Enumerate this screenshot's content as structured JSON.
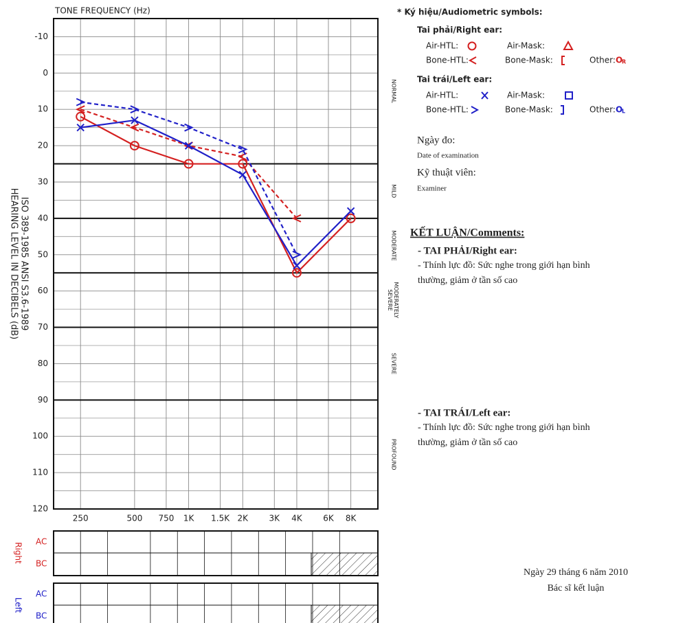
{
  "chart_data": {
    "type": "line",
    "xlabel": "TONE FREQUENCY (Hz)",
    "ylabel": "HEARING LEVEL IN DECIBELS (dB)",
    "ylabel2": "ISO 389-1985 ANSI S3.6-1989",
    "x_log": true,
    "y_inverted": true,
    "grid": true,
    "xlim": [
      177,
      11314
    ],
    "xticks": [
      250,
      500,
      750,
      {
        "value": 1000,
        "label": "1K"
      },
      {
        "value": 1500,
        "label": "1.5K"
      },
      {
        "value": 2000,
        "label": "2K"
      },
      {
        "value": 3000,
        "label": "3K"
      },
      {
        "value": 4000,
        "label": "4K"
      },
      {
        "value": 6000,
        "label": "6K"
      },
      {
        "value": 8000,
        "label": "8K"
      }
    ],
    "ylim": [
      -15,
      120
    ],
    "yticks": [
      -10,
      0,
      10,
      20,
      30,
      40,
      50,
      60,
      70,
      80,
      90,
      100,
      110,
      120
    ],
    "y_minor_ticks": [
      -5,
      5,
      15,
      25,
      35,
      45,
      55,
      65,
      75,
      85,
      95,
      105,
      115
    ],
    "boundaries": [
      25,
      40,
      55,
      70,
      90
    ],
    "band_labels": [
      "NORMAL",
      "MILD",
      "MODERATE",
      "MODERATELY SEVERE",
      "SEVERE",
      "PROFOUND"
    ],
    "x": [
      250,
      500,
      1000,
      2000,
      4000,
      8000
    ],
    "series": [
      {
        "color": "#d42020",
        "marker": "circle",
        "dash": false,
        "values": [
          12,
          20,
          25,
          25,
          55,
          40
        ]
      },
      {
        "color": "#d42020",
        "marker": "lt",
        "dash": true,
        "values": [
          10,
          15,
          20,
          23,
          40,
          null
        ]
      },
      {
        "color": "#2020c8",
        "marker": "x",
        "dash": false,
        "values": [
          15,
          13,
          20,
          28,
          53,
          38
        ]
      },
      {
        "color": "#2020c8",
        "marker": "gt",
        "dash": true,
        "values": [
          8,
          10,
          15,
          21,
          50,
          null
        ]
      }
    ],
    "masking": [
      {
        "ear": "Right",
        "rows": [
          "AC",
          "BC"
        ]
      },
      {
        "ear": "Left",
        "rows": [
          "AC",
          "BC"
        ]
      }
    ]
  },
  "legend": {
    "title": "* Ký hiệu/Audiometric symbols:",
    "right_title": "Tai phải/Right ear:",
    "left_title": "Tai trái/Left ear:",
    "air_htl": "Air-HTL:",
    "air_mask": "Air-Mask:",
    "bone_htl": "Bone-HTL:",
    "bone_mask": "Bone-Mask:",
    "other": "Other:",
    "other_symbol": "O",
    "right_sub": "R",
    "left_sub": "L"
  },
  "info": {
    "date_vi": "Ngày đo:",
    "date_en": "Date of examination",
    "examiner_vi": "Kỹ thuật viên:",
    "examiner_en": "Examiner"
  },
  "comments": {
    "title": "KẾT LUẬN/Comments:",
    "right_title": "- TAI PHẢI/Right ear:",
    "right_lines": [
      "- Thính lực đồ: Sức nghe trong giới hạn bình",
      "thường, giảm ở tần số cao"
    ],
    "left_title": "- TAI TRÁI/Left ear:",
    "left_lines": [
      "- Thính lực đồ: Sức nghe trong giới hạn bình",
      "thường, giảm ở tần số cao"
    ]
  },
  "signature": {
    "date": "Ngày 29 tháng 6 năm 2010",
    "role": "Bác sĩ kết luận"
  }
}
